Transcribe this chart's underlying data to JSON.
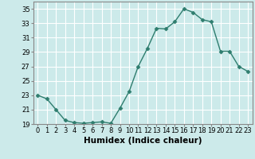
{
  "xlabel": "Humidex (Indice chaleur)",
  "ylabel": "",
  "x": [
    0,
    1,
    2,
    3,
    4,
    5,
    6,
    7,
    8,
    9,
    10,
    11,
    12,
    13,
    14,
    15,
    16,
    17,
    18,
    19,
    20,
    21,
    22,
    23
  ],
  "y": [
    23,
    22.5,
    21,
    19.5,
    19.2,
    19.1,
    19.2,
    19.3,
    19.1,
    21.2,
    23.5,
    27,
    29.5,
    32.3,
    32.2,
    33.2,
    35,
    34.5,
    33.5,
    33.2,
    29.1,
    29.1,
    27,
    26.3
  ],
  "ylim": [
    19,
    36
  ],
  "yticks": [
    19,
    21,
    23,
    25,
    27,
    29,
    31,
    33,
    35
  ],
  "xticks": [
    0,
    1,
    2,
    3,
    4,
    5,
    6,
    7,
    8,
    9,
    10,
    11,
    12,
    13,
    14,
    15,
    16,
    17,
    18,
    19,
    20,
    21,
    22,
    23
  ],
  "line_color": "#2e7d6e",
  "marker": "D",
  "marker_size": 2.5,
  "bg_color": "#cceaea",
  "grid_color": "#ffffff",
  "grid_minor_color": "#e8f8f8",
  "axis_color": "#888888",
  "tick_fontsize": 6,
  "label_fontsize": 7.5
}
